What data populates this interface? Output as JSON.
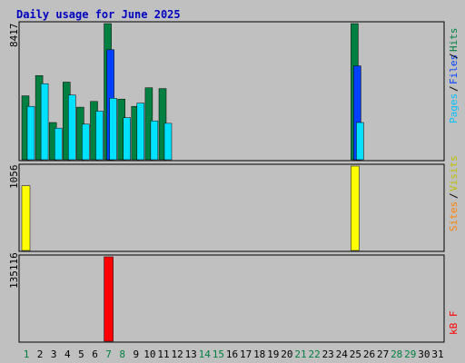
{
  "chart_data": {
    "type": "bar",
    "title": "Daily usage for June 2025",
    "days": [
      "1",
      "2",
      "3",
      "4",
      "5",
      "6",
      "7",
      "8",
      "9",
      "10",
      "11",
      "12",
      "13",
      "14",
      "15",
      "16",
      "17",
      "18",
      "19",
      "20",
      "21",
      "22",
      "23",
      "24",
      "25",
      "26",
      "27",
      "28",
      "29",
      "30",
      "31"
    ],
    "weekend_days": [
      "1",
      "7",
      "8",
      "14",
      "15",
      "21",
      "22",
      "28",
      "29"
    ],
    "panels": [
      {
        "id": "hits_files_pages",
        "ymax_label": "8417",
        "ymax": 8417,
        "series": [
          {
            "name": "Hits",
            "color": "#008040",
            "values": [
              3950,
              5200,
              2300,
              4800,
              3250,
              3600,
              8417,
              3750,
              3300,
              4450,
              4400,
              0,
              0,
              0,
              0,
              0,
              0,
              0,
              0,
              0,
              0,
              0,
              0,
              0,
              8417,
              0,
              0,
              0,
              0,
              0,
              0
            ]
          },
          {
            "name": "Files",
            "color": "#0040ff",
            "values": [
              0,
              0,
              0,
              0,
              0,
              0,
              6800,
              0,
              0,
              0,
              0,
              0,
              0,
              0,
              0,
              0,
              0,
              0,
              0,
              0,
              0,
              0,
              0,
              0,
              5800,
              0,
              0,
              0,
              0,
              0,
              0
            ]
          },
          {
            "name": "Pages",
            "color": "#00e0ff",
            "values": [
              3300,
              4700,
              1950,
              4000,
              2200,
              3000,
              3800,
              2600,
              3500,
              2400,
              2250,
              0,
              0,
              0,
              0,
              0,
              0,
              0,
              0,
              0,
              0,
              0,
              0,
              0,
              2300,
              0,
              0,
              0,
              0,
              0,
              0
            ]
          }
        ]
      },
      {
        "id": "visits_sites",
        "ymax_label": "1056",
        "ymax": 1056,
        "series": [
          {
            "name": "Visits",
            "color": "#ffff00",
            "values": [
              810,
              0,
              0,
              0,
              0,
              0,
              0,
              0,
              0,
              0,
              0,
              0,
              0,
              0,
              0,
              0,
              0,
              0,
              0,
              0,
              0,
              0,
              0,
              0,
              1056,
              0,
              0,
              0,
              0,
              0,
              0
            ]
          },
          {
            "name": "Sites",
            "color": "#ff8000",
            "values": [
              0,
              0,
              0,
              0,
              0,
              0,
              0,
              0,
              0,
              0,
              0,
              0,
              0,
              0,
              0,
              0,
              0,
              0,
              0,
              0,
              0,
              0,
              0,
              0,
              0,
              0,
              0,
              0,
              0,
              0,
              0
            ]
          }
        ]
      },
      {
        "id": "kbytes",
        "ymax_label": "135116",
        "ymax": 135116,
        "series": [
          {
            "name": "KBytes",
            "color": "#ff0000",
            "values": [
              0,
              0,
              0,
              0,
              0,
              0,
              135116,
              0,
              0,
              0,
              0,
              0,
              0,
              0,
              0,
              0,
              0,
              0,
              0,
              0,
              0,
              0,
              0,
              0,
              0,
              0,
              0,
              0,
              0,
              0,
              0
            ]
          }
        ]
      }
    ]
  }
}
